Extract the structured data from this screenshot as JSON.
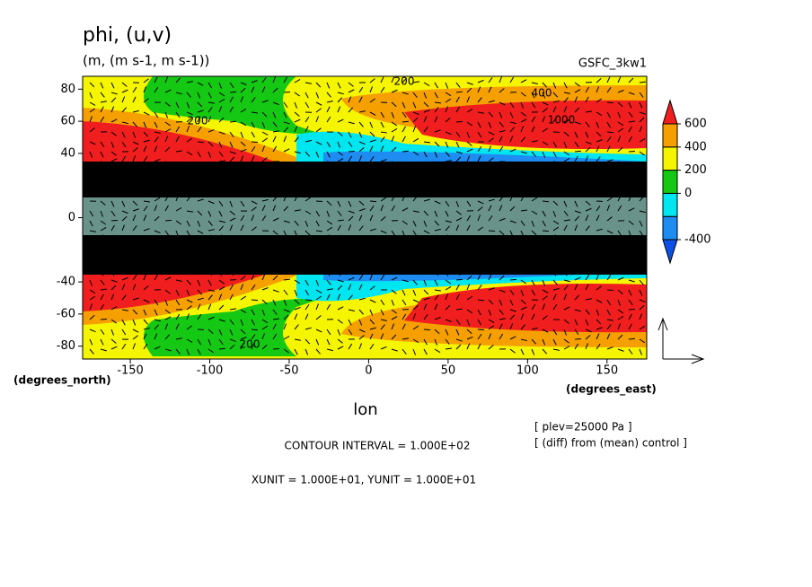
{
  "chart_data": {
    "type": "contour",
    "title": "phi, (u,v)",
    "subtitle": "(m, (m s-1, m s-1))",
    "dataset": "GSFC_3kw1",
    "xlabel": "lon",
    "xunits": "(degrees_east)",
    "yunits": "(degrees_north)",
    "xlim": [
      -180,
      175
    ],
    "ylim": [
      -88,
      88
    ],
    "xticks": [
      -150,
      -100,
      -50,
      0,
      50,
      100,
      150
    ],
    "yticks": [
      -80,
      -60,
      -40,
      0,
      40,
      60,
      80
    ],
    "colorbar_lim": [
      -400,
      600
    ],
    "colorbar_ticks": [
      600,
      400,
      200,
      0,
      -400
    ],
    "colorbar_colors": [
      "#0a50e6",
      "#1e8cf0",
      "#00e6f0",
      "#14c814",
      "#f5f500",
      "#f5a000",
      "#f01e1e"
    ],
    "contour_labels": [
      200,
      400,
      200,
      1000,
      200
    ],
    "notes": [
      "CONTOUR INTERVAL = 1.000E+02",
      "XUNIT = 1.000E+01, YUNIT = 1.000E+01",
      "[ plev=25000 Pa ]",
      "[ (diff) from (mean) control ]"
    ]
  }
}
